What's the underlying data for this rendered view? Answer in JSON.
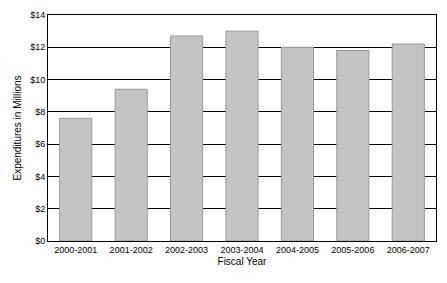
{
  "chart_data": {
    "type": "bar",
    "x_label": "Fiscal Year",
    "y_label": "Expenditures in Millions",
    "categories": [
      "2000-2001",
      "2001-2002",
      "2002-2003",
      "2003-2004",
      "2004-2005",
      "2005-2006",
      "2006-2007"
    ],
    "values": [
      7.6,
      9.4,
      12.7,
      13.0,
      12.0,
      11.8,
      12.2
    ],
    "color": "#c4c4c4",
    "ylim": [
      0,
      14
    ],
    "yticks": [
      {
        "value": 0,
        "label": "$0"
      },
      {
        "value": 2,
        "label": "$2"
      },
      {
        "value": 4,
        "label": "$4"
      },
      {
        "value": 6,
        "label": "$6"
      },
      {
        "value": 8,
        "label": "$8"
      },
      {
        "value": 10,
        "label": "$10"
      },
      {
        "value": 12,
        "label": "$12"
      },
      {
        "value": 14,
        "label": "$14"
      }
    ],
    "grid": true
  }
}
